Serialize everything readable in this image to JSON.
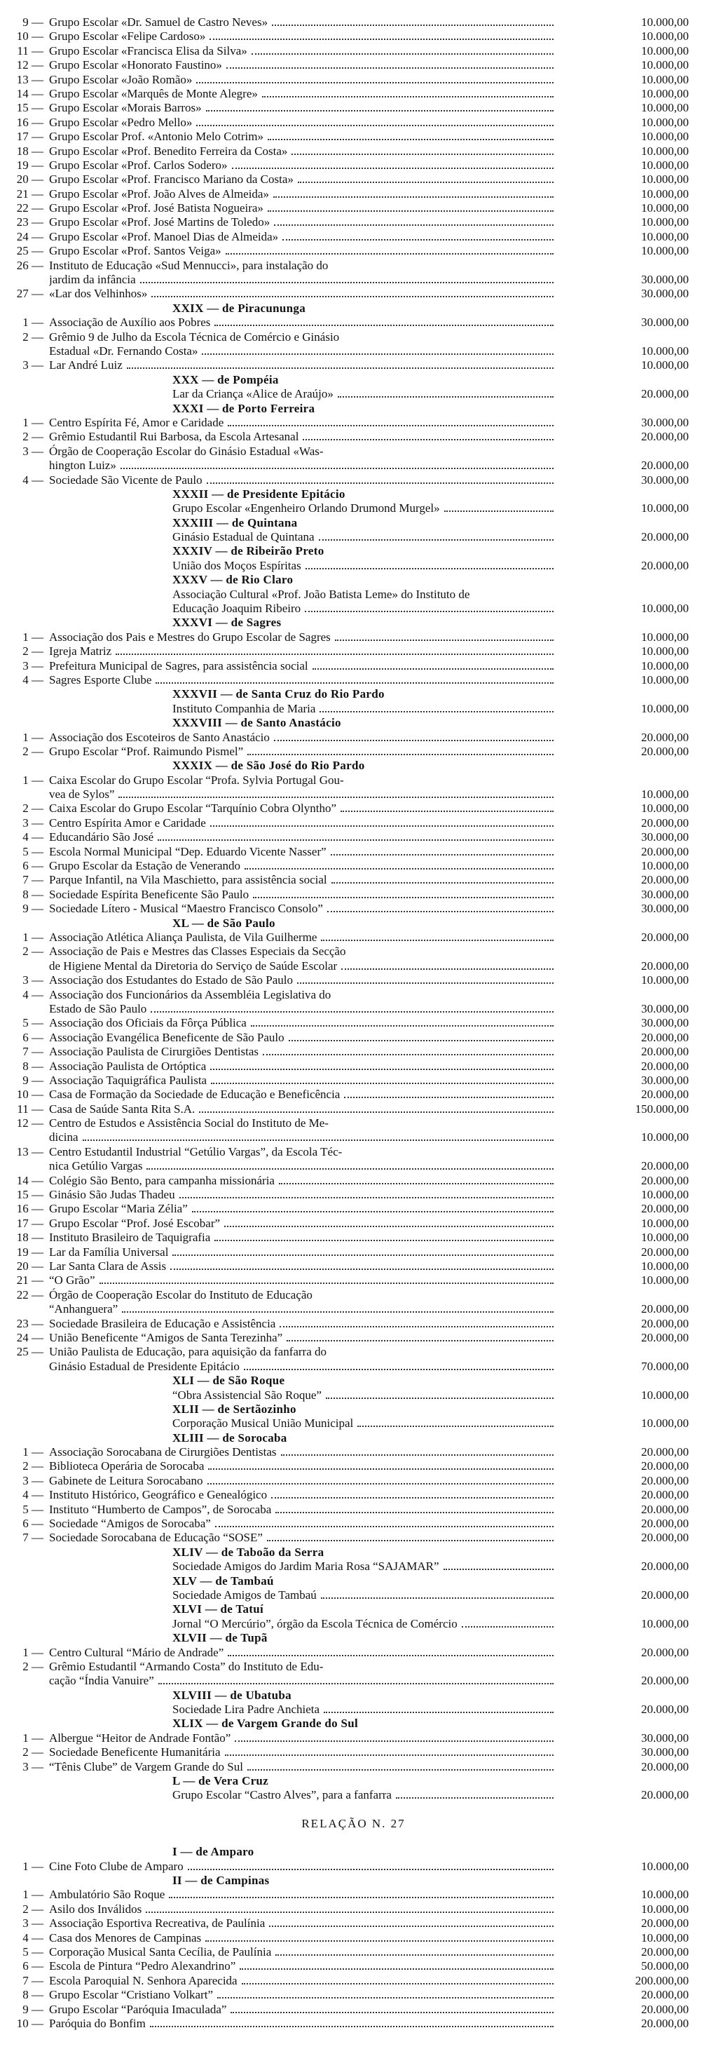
{
  "top": [
    {
      "number": "9 —",
      "lines": [
        "Grupo Escolar «Dr. Samuel de Castro Neves»"
      ],
      "amount": "10.000,00"
    },
    {
      "number": "10 —",
      "lines": [
        "Grupo Escolar «Felipe Cardoso»"
      ],
      "amount": "10.000,00"
    },
    {
      "number": "11 —",
      "lines": [
        "Grupo Escolar «Francisca Elisa da Silva»"
      ],
      "amount": "10.000,00"
    },
    {
      "number": "12 —",
      "lines": [
        "Grupo Escolar «Honorato Faustino»"
      ],
      "amount": "10.000,00"
    },
    {
      "number": "13 —",
      "lines": [
        "Grupo Escolar «João Romão»"
      ],
      "amount": "10.000,00"
    },
    {
      "number": "14 —",
      "lines": [
        "Grupo Escolar «Marquês de Monte Alegre»"
      ],
      "amount": "10.000,00"
    },
    {
      "number": "15 —",
      "lines": [
        "Grupo Escolar «Morais Barros»"
      ],
      "amount": "10.000,00"
    },
    {
      "number": "16 —",
      "lines": [
        "Grupo Escolar «Pedro Mello»"
      ],
      "amount": "10.000,00"
    },
    {
      "number": "17 —",
      "lines": [
        "Grupo Escolar Prof. «Antonio Melo Cotrim»"
      ],
      "amount": "10.000,00"
    },
    {
      "number": "18 —",
      "lines": [
        "Grupo Escolar «Prof. Benedito Ferreira da Costa»"
      ],
      "amount": "10.000,00"
    },
    {
      "number": "19 —",
      "lines": [
        "Grupo Escolar «Prof. Carlos Sodero»"
      ],
      "amount": "10.000,00"
    },
    {
      "number": "20 —",
      "lines": [
        "Grupo Escolar «Prof. Francisco Mariano da Costa»"
      ],
      "amount": "10.000,00"
    },
    {
      "number": "21 —",
      "lines": [
        "Grupo Escolar «Prof. João Alves de Almeida»"
      ],
      "amount": "10.000,00"
    },
    {
      "number": "22 —",
      "lines": [
        "Grupo Escolar «Prof. José Batista Nogueira»"
      ],
      "amount": "10.000,00"
    },
    {
      "number": "23 —",
      "lines": [
        "Grupo Escolar «Prof. José Martins de Toledo»"
      ],
      "amount": "10.000,00"
    },
    {
      "number": "24 —",
      "lines": [
        "Grupo Escolar «Prof. Manoel Dias de Almeida»"
      ],
      "amount": "10.000,00"
    },
    {
      "number": "25 —",
      "lines": [
        "Grupo Escolar «Prof. Santos Veiga»"
      ],
      "amount": "10.000,00"
    },
    {
      "number": "26 —",
      "lines": [
        "Instituto de Educação «Sud Mennucci», para instalação do",
        "jardim da infância"
      ],
      "amount": "30.000,00"
    },
    {
      "number": "27 —",
      "lines": [
        "«Lar dos Velhinhos»"
      ],
      "amount": "30.000,00"
    }
  ],
  "sections": [
    {
      "heading": "XXIX — de Piracununga",
      "items": [
        {
          "number": "1 —",
          "lines": [
            "Associação de Auxílio aos Pobres"
          ],
          "amount": "30.000,00"
        },
        {
          "number": "2 —",
          "lines": [
            "Grêmio 9 de Julho da Escola Técnica de Comércio e Ginásio",
            "Estadual «Dr. Fernando Costa»"
          ],
          "amount": "10.000,00"
        },
        {
          "number": "3 —",
          "lines": [
            "Lar André Luiz"
          ],
          "amount": "10.000,00"
        }
      ]
    },
    {
      "heading": "XXX — de Pompéia",
      "items": [
        {
          "lines": [
            "Lar da Criança «Alice de Araújo»"
          ],
          "amount": "20.000,00"
        }
      ]
    },
    {
      "heading": "XXXI — de Porto Ferreira",
      "items": [
        {
          "number": "1 —",
          "lines": [
            "Centro Espírita Fé, Amor e Caridade"
          ],
          "amount": "30.000,00"
        },
        {
          "number": "2 —",
          "lines": [
            "Grêmio Estudantil Rui Barbosa, da Escola Artesanal"
          ],
          "amount": "20.000,00"
        },
        {
          "number": "3 —",
          "lines": [
            "Órgão de Cooperação Escolar do Ginásio Estadual «Was-",
            "hington Luiz»"
          ],
          "amount": "20.000,00"
        },
        {
          "number": "4 —",
          "lines": [
            "Sociedade São Vicente de Paulo"
          ],
          "amount": "30.000,00"
        }
      ]
    },
    {
      "heading": "XXXII — de Presidente Epitácio",
      "items": [
        {
          "lines": [
            "Grupo Escolar «Engenheiro Orlando Drumond Murgel»"
          ],
          "amount": "10.000,00"
        }
      ]
    },
    {
      "heading": "XXXIII — de Quintana",
      "items": [
        {
          "lines": [
            "Ginásio Estadual de Quintana"
          ],
          "amount": "20.000,00"
        }
      ]
    },
    {
      "heading": "XXXIV — de Ribeirão Preto",
      "items": [
        {
          "lines": [
            "União dos Moços Espíritas"
          ],
          "amount": "20.000,00"
        }
      ]
    },
    {
      "heading": "XXXV — de Rio Claro",
      "items": [
        {
          "lines": [
            "Associação Cultural «Prof. João Batista Leme» do Instituto de",
            "Educação Joaquim Ribeiro"
          ],
          "amount": "10.000,00"
        }
      ]
    },
    {
      "heading": "XXXVI — de Sagres",
      "items": [
        {
          "number": "1 —",
          "lines": [
            "Associação dos Pais e Mestres do Grupo Escolar de Sagres"
          ],
          "amount": "10.000,00"
        },
        {
          "number": "2 —",
          "lines": [
            "Igreja Matriz"
          ],
          "amount": "10.000,00"
        },
        {
          "number": "3 —",
          "lines": [
            "Prefeitura Municipal de Sagres, para assistência social"
          ],
          "amount": "10.000,00"
        },
        {
          "number": "4 —",
          "lines": [
            "Sagres Esporte Clube"
          ],
          "amount": "10.000,00"
        }
      ]
    },
    {
      "heading": "XXXVII — de Santa Cruz do Rio Pardo",
      "items": [
        {
          "lines": [
            "Instituto Companhia de Maria"
          ],
          "amount": "10.000,00"
        }
      ]
    },
    {
      "heading": "XXXVIII — de Santo Anastácio",
      "items": [
        {
          "number": "1 —",
          "lines": [
            "Associação dos Escoteiros de Santo Anastácio"
          ],
          "amount": "20.000,00"
        },
        {
          "number": "2 —",
          "lines": [
            "Grupo Escolar “Prof. Raimundo Pismel”"
          ],
          "amount": "20.000,00"
        }
      ]
    },
    {
      "heading": "XXXIX — de São José do Rio Pardo",
      "items": [
        {
          "number": "1 —",
          "lines": [
            "Caixa Escolar do Grupo Escolar “Profa. Sylvia Portugal Gou-",
            "vea de Sylos”"
          ],
          "amount": "10.000,00"
        },
        {
          "number": "2 —",
          "lines": [
            "Caixa Escolar do Grupo Escolar “Tarquínio Cobra Olyntho”"
          ],
          "amount": "10.000,00"
        },
        {
          "number": "3 —",
          "lines": [
            "Centro Espírita Amor e Caridade"
          ],
          "amount": "20.000,00"
        },
        {
          "number": "4 —",
          "lines": [
            "Educandário São José"
          ],
          "amount": "30.000,00"
        },
        {
          "number": "5 —",
          "lines": [
            "Escola Normal Municipal “Dep. Eduardo Vicente Nasser”"
          ],
          "amount": "20.000,00"
        },
        {
          "number": "6 —",
          "lines": [
            "Grupo Escolar da Estação de Venerando"
          ],
          "amount": "10.000,00"
        },
        {
          "number": "7 —",
          "lines": [
            "Parque Infantil, na Vila Maschietto, para assistência social"
          ],
          "amount": "20.000,00"
        },
        {
          "number": "8 —",
          "lines": [
            "Sociedade Espírita Beneficente São Paulo"
          ],
          "amount": "30.000,00"
        },
        {
          "number": "9 —",
          "lines": [
            "Sociedade Lítero - Musical “Maestro Francisco Consolo”"
          ],
          "amount": "30.000,00"
        }
      ]
    },
    {
      "heading": "XL — de São Paulo",
      "items": [
        {
          "number": "1 —",
          "lines": [
            "Associação Atlética Aliança Paulista, de Vila Guilherme"
          ],
          "amount": "20.000,00"
        },
        {
          "number": "2 —",
          "lines": [
            "Associação de Pais e Mestres das Classes Especiais da Secção",
            "de Higiene Mental da Diretoria do Serviço de Saúde Escolar"
          ],
          "amount": "20.000,00"
        },
        {
          "number": "3 —",
          "lines": [
            "Associação dos Estudantes do Estado de São Paulo"
          ],
          "amount": "10.000,00"
        },
        {
          "number": "4 —",
          "lines": [
            "Associação dos Funcionários da Assembléia Legislativa do",
            "Estado de São Paulo"
          ],
          "amount": "30.000,00"
        },
        {
          "number": "5 —",
          "lines": [
            "Associação dos Oficiais da Fôrça Pública"
          ],
          "amount": "30.000,00"
        },
        {
          "number": "6 —",
          "lines": [
            "Associação Evangélica Beneficente de São Paulo"
          ],
          "amount": "20.000,00"
        },
        {
          "number": "7 —",
          "lines": [
            "Associação Paulista de Cirurgiões Dentistas"
          ],
          "amount": "20.000,00"
        },
        {
          "number": "8 —",
          "lines": [
            "Associação Paulista de Ortóptica"
          ],
          "amount": "20.000,00"
        },
        {
          "number": "9 —",
          "lines": [
            "Associação Taquigráfica Paulista"
          ],
          "amount": "30.000,00"
        },
        {
          "number": "10 —",
          "lines": [
            "Casa de Formação da Sociedade de Educação e Beneficência"
          ],
          "amount": "20.000,00"
        },
        {
          "number": "11 —",
          "lines": [
            "Casa de Saúde Santa Rita S.A."
          ],
          "amount": "150.000,00"
        },
        {
          "number": "12 —",
          "lines": [
            "Centro de Estudos e Assistência Social do Instituto de Me-",
            "dicina"
          ],
          "amount": "10.000,00"
        },
        {
          "number": "13 —",
          "lines": [
            "Centro Estudantil Industrial “Getúlio Vargas”, da Escola Téc-",
            "nica Getúlio Vargas"
          ],
          "amount": "20.000,00"
        },
        {
          "number": "14 —",
          "lines": [
            "Colégio São Bento, para campanha missionária"
          ],
          "amount": "20.000,00"
        },
        {
          "number": "15 —",
          "lines": [
            "Ginásio São Judas Thadeu"
          ],
          "amount": "10.000,00"
        },
        {
          "number": "16 —",
          "lines": [
            "Grupo Escolar “Maria Zélia”"
          ],
          "amount": "20.000,00"
        },
        {
          "number": "17 —",
          "lines": [
            "Grupo Escolar “Prof. José Escobar”"
          ],
          "amount": "10.000,00"
        },
        {
          "number": "18 —",
          "lines": [
            "Instituto Brasileiro de Taquigrafia"
          ],
          "amount": "10.000,00"
        },
        {
          "number": "19 —",
          "lines": [
            "Lar da Família Universal"
          ],
          "amount": "20.000,00"
        },
        {
          "number": "20 —",
          "lines": [
            "Lar Santa Clara de Assis"
          ],
          "amount": "10.000,00"
        },
        {
          "number": "21 —",
          "lines": [
            "“O Grão”"
          ],
          "amount": "10.000,00"
        },
        {
          "number": "22 —",
          "lines": [
            "Órgão de Cooperação Escolar do Instituto de Educação",
            "“Anhanguera”"
          ],
          "amount": "20.000,00"
        },
        {
          "number": "23 —",
          "lines": [
            "Sociedade Brasileira de Educação e Assistência"
          ],
          "amount": "20.000,00"
        },
        {
          "number": "24 —",
          "lines": [
            "União Beneficente “Amigos de Santa Terezinha”"
          ],
          "amount": "20.000,00"
        },
        {
          "number": "25 —",
          "lines": [
            "União Paulista de Educação, para aquisição da fanfarra do",
            "Ginásio Estadual de Presidente Epitácio"
          ],
          "amount": "70.000,00"
        }
      ]
    },
    {
      "heading": "XLI — de São Roque",
      "items": [
        {
          "lines": [
            "“Obra Assistencial São Roque”"
          ],
          "amount": "10.000,00"
        }
      ]
    },
    {
      "heading": "XLII — de Sertãozinho",
      "items": [
        {
          "lines": [
            "Corporação Musical União Municipal"
          ],
          "amount": "10.000,00"
        }
      ]
    },
    {
      "heading": "XLIII — de Sorocaba",
      "items": [
        {
          "number": "1 —",
          "lines": [
            "Associação Sorocabana de Cirurgiões Dentistas"
          ],
          "amount": "20.000,00"
        },
        {
          "number": "2 —",
          "lines": [
            "Biblioteca Operária de Sorocaba"
          ],
          "amount": "20.000,00"
        },
        {
          "number": "3 —",
          "lines": [
            "Gabinete de Leitura Sorocabano"
          ],
          "amount": "20.000,00"
        },
        {
          "number": "4 —",
          "lines": [
            "Instituto Histórico, Geográfico e Genealógico"
          ],
          "amount": "20.000,00"
        },
        {
          "number": "5 —",
          "lines": [
            "Instituto “Humberto de Campos”, de Sorocaba"
          ],
          "amount": "20.000,00"
        },
        {
          "number": "6 —",
          "lines": [
            "Sociedade “Amigos de Sorocaba”"
          ],
          "amount": "20.000,00"
        },
        {
          "number": "7 —",
          "lines": [
            "Sociedade Sorocabana de Educação “SOSE”"
          ],
          "amount": "20.000,00"
        }
      ]
    },
    {
      "heading": "XLIV — de Taboão da Serra",
      "items": [
        {
          "lines": [
            "Sociedade Amigos do Jardim Maria Rosa “SAJAMAR”"
          ],
          "amount": "20.000,00"
        }
      ]
    },
    {
      "heading": "XLV — de Tambaú",
      "items": [
        {
          "lines": [
            "Sociedade Amigos de Tambaú"
          ],
          "amount": "20.000,00"
        }
      ]
    },
    {
      "heading": "XLVI — de Tatuí",
      "items": [
        {
          "lines": [
            "Jornal “O Mercúrio”, órgão da Escola Técnica de Comércio"
          ],
          "amount": "10.000,00"
        }
      ]
    },
    {
      "heading": "XLVII — de Tupã",
      "items": [
        {
          "number": "1 —",
          "lines": [
            "Centro Cultural “Mário de Andrade”"
          ],
          "amount": "20.000,00"
        },
        {
          "number": "2 —",
          "lines": [
            "Grêmio Estudantil “Armando Costa” do Instituto de Edu-",
            "cação “Índia Vanuire”"
          ],
          "amount": "20.000,00"
        }
      ]
    },
    {
      "heading": "XLVIII — de Ubatuba",
      "items": [
        {
          "lines": [
            "Sociedade Lira Padre Anchieta"
          ],
          "amount": "20.000,00"
        }
      ]
    },
    {
      "heading": "XLIX — de Vargem Grande do Sul",
      "items": [
        {
          "number": "1 —",
          "lines": [
            "Albergue “Heitor de Andrade Fontão”"
          ],
          "amount": "30.000,00"
        },
        {
          "number": "2 —",
          "lines": [
            "Sociedade Beneficente Humanitária"
          ],
          "amount": "30.000,00"
        },
        {
          "number": "3 —",
          "lines": [
            "“Tênis Clube” de Vargem Grande do Sul"
          ],
          "amount": "20.000,00"
        }
      ]
    },
    {
      "heading": "L — de Vera Cruz",
      "items": [
        {
          "lines": [
            "Grupo Escolar “Castro Alves”, para a fanfarra"
          ],
          "amount": "20.000,00"
        }
      ]
    }
  ],
  "relacao": {
    "title": "RELAÇÃO N. 27",
    "sections": [
      {
        "heading": "I — de Amparo",
        "items": [
          {
            "number": "1 —",
            "lines": [
              "Cine Foto Clube de Amparo"
            ],
            "amount": "10.000,00"
          }
        ]
      },
      {
        "heading": "II — de Campinas",
        "items": [
          {
            "number": "1 —",
            "lines": [
              "Ambulatório São Roque"
            ],
            "amount": "10.000,00"
          },
          {
            "number": "2 —",
            "lines": [
              "Asilo dos Inválidos"
            ],
            "amount": "10.000,00"
          },
          {
            "number": "3 —",
            "lines": [
              "Associação Esportiva Recreativa, de Paulínia"
            ],
            "amount": "20.000,00"
          },
          {
            "number": "4 —",
            "lines": [
              "Casa dos Menores de Campinas"
            ],
            "amount": "10.000,00"
          },
          {
            "number": "5 —",
            "lines": [
              "Corporação Musical Santa Cecília, de Paulínia"
            ],
            "amount": "20.000,00"
          },
          {
            "number": "6 —",
            "lines": [
              "Escola de Pintura “Pedro Alexandrino”"
            ],
            "amount": "50.000,00"
          },
          {
            "number": "7 —",
            "lines": [
              "Escola Paroquial N. Senhora Aparecida"
            ],
            "amount": "200.000,00"
          },
          {
            "number": "8 —",
            "lines": [
              "Grupo Escolar “Cristiano Volkart”"
            ],
            "amount": "20.000,00"
          },
          {
            "number": "9 —",
            "lines": [
              "Grupo Escolar “Paróquia Imaculada”"
            ],
            "amount": "20.000,00"
          },
          {
            "number": "10 —",
            "lines": [
              "Paróquia do Bonfim"
            ],
            "amount": "20.000,00"
          }
        ]
      }
    ]
  }
}
